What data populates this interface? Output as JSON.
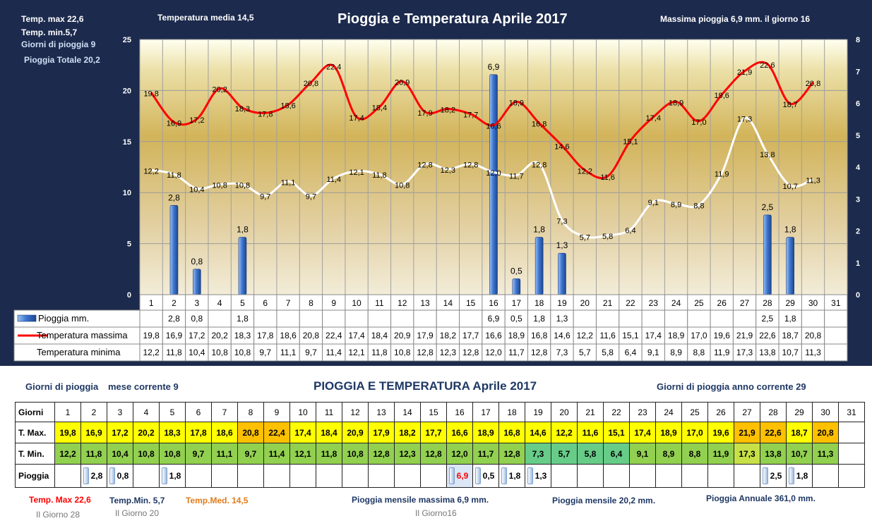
{
  "header": {
    "temp_max": "Temp. max  22,6",
    "temp_min": "Temp.  min.5,7",
    "giorni_pioggia": "Giorni  di pioggia  9",
    "pioggia_totale": "Pioggia Totale  20,2",
    "temperatura_media": "Temperatura media  14,5",
    "title": "Pioggia e Temperatura Aprile 2017",
    "massima_pioggia": "Massima pioggia  6,9   mm.  il giorno 16"
  },
  "chart_data": {
    "type": "bar",
    "title": "Pioggia e Temperatura Aprile 2017",
    "categories": [
      "1",
      "2",
      "3",
      "4",
      "5",
      "6",
      "7",
      "8",
      "9",
      "10",
      "11",
      "12",
      "13",
      "14",
      "15",
      "16",
      "17",
      "18",
      "19",
      "20",
      "21",
      "22",
      "23",
      "24",
      "25",
      "26",
      "27",
      "28",
      "29",
      "30",
      "31"
    ],
    "left_axis": {
      "min": 0,
      "max": 25,
      "ticks": [
        "0",
        "5",
        "10",
        "15",
        "20",
        "25"
      ]
    },
    "right_axis": {
      "min": 0,
      "max": 8,
      "ticks": [
        "0",
        "1",
        "2",
        "3",
        "4",
        "5",
        "6",
        "7",
        "8"
      ]
    },
    "series": [
      {
        "name": "Pioggia mm.",
        "type": "bar",
        "axis": "right",
        "color": "#3a6fc4",
        "values": [
          null,
          2.8,
          0.8,
          null,
          1.8,
          null,
          null,
          null,
          null,
          null,
          null,
          null,
          null,
          null,
          null,
          6.9,
          0.5,
          1.8,
          1.3,
          null,
          null,
          null,
          null,
          null,
          null,
          null,
          null,
          2.5,
          1.8,
          null,
          null
        ],
        "labels": [
          "",
          "2,8",
          "0,8",
          "",
          "1,8",
          "",
          "",
          "",
          "",
          "",
          "",
          "",
          "",
          "",
          "",
          "6,9",
          "0,5",
          "1,8",
          "1,3",
          "",
          "",
          "",
          "",
          "",
          "",
          "",
          "",
          "2,5",
          "1,8",
          "",
          ""
        ]
      },
      {
        "name": "Temperatura massima",
        "type": "line",
        "axis": "left",
        "color": "#ff0000",
        "values": [
          19.8,
          16.9,
          17.2,
          20.2,
          18.3,
          17.8,
          18.6,
          20.8,
          22.4,
          17.4,
          18.4,
          20.9,
          17.9,
          18.2,
          17.7,
          16.6,
          18.9,
          16.8,
          14.6,
          12.2,
          11.6,
          15.1,
          17.4,
          18.9,
          17.0,
          19.6,
          21.9,
          22.6,
          18.7,
          20.8,
          null
        ],
        "labels": [
          "19,8",
          "16,9",
          "17,2",
          "20,2",
          "18,3",
          "17,8",
          "18,6",
          "20,8",
          "22,4",
          "17,4",
          "18,4",
          "20,9",
          "17,9",
          "18,2",
          "17,7",
          "16,6",
          "18,9",
          "16,8",
          "14,6",
          "12,2",
          "11,6",
          "15,1",
          "17,4",
          "18,9",
          "17,0",
          "19,6",
          "21,9",
          "22,6",
          "18,7",
          "20,8",
          ""
        ]
      },
      {
        "name": "Temperatura minima",
        "type": "line",
        "axis": "left",
        "color": "#ffffff",
        "values": [
          12.2,
          11.8,
          10.4,
          10.8,
          10.8,
          9.7,
          11.1,
          9.7,
          11.4,
          12.1,
          11.8,
          10.8,
          12.8,
          12.3,
          12.8,
          12.0,
          11.7,
          12.8,
          7.3,
          5.7,
          5.8,
          6.4,
          9.1,
          8.9,
          8.8,
          11.9,
          17.3,
          13.8,
          10.7,
          11.3,
          null
        ],
        "labels": [
          "12,2",
          "11,8",
          "10,4",
          "10,8",
          "10,8",
          "9,7",
          "11,1",
          "9,7",
          "11,4",
          "12,1",
          "11,8",
          "10,8",
          "12,8",
          "12,3",
          "12,8",
          "12,0",
          "11,7",
          "12,8",
          "7,3",
          "5,7",
          "5,8",
          "6,4",
          "9,1",
          "8,9",
          "8,8",
          "11,9",
          "17,3",
          "13,8",
          "10,7",
          "11,3",
          ""
        ]
      }
    ],
    "grid": true,
    "legend_placement": "bottom-table"
  },
  "bottom": {
    "giorni_mese_label": "Giorni di pioggia",
    "giorni_mese_suffix": "mese corrente   9",
    "title": "PIOGGIA E TEMPERATURA Aprile 2017",
    "giorni_anno": "Giorni di pioggia anno corrente  29",
    "row_labels": [
      "Giorni",
      "T. Max.",
      "T. Min.",
      "Pioggia"
    ],
    "tmax_colors": [
      "#ffff00",
      "#ffff00",
      "#ffff00",
      "#ffff00",
      "#ffff00",
      "#ffff00",
      "#ffff00",
      "#ffc000",
      "#ffc000",
      "#ffff00",
      "#ffff00",
      "#ffff00",
      "#ffff00",
      "#ffff00",
      "#ffff00",
      "#ffff00",
      "#ffff00",
      "#ffff00",
      "#ffff00",
      "#ffff00",
      "#ffff00",
      "#ffff00",
      "#ffff00",
      "#ffff00",
      "#ffff00",
      "#ffff00",
      "#ffc000",
      "#ffc000",
      "#ffff00",
      "#ffc000",
      ""
    ],
    "tmin_colors": [
      "#92d050",
      "#92d050",
      "#92d050",
      "#92d050",
      "#92d050",
      "#92d050",
      "#92d050",
      "#92d050",
      "#92d050",
      "#92d050",
      "#92d050",
      "#92d050",
      "#92d050",
      "#92d050",
      "#92d050",
      "#92d050",
      "#92d050",
      "#92d050",
      "#66cc88",
      "#66cc88",
      "#66cc88",
      "#66cc88",
      "#92d050",
      "#92d050",
      "#92d050",
      "#92d050",
      "#c8e048",
      "#92d050",
      "#92d050",
      "#92d050",
      ""
    ],
    "footer": {
      "temp_max": "Temp. Max 22,6",
      "temp_max_day": "Il Giorno 28",
      "temp_min": "Temp.Min. 5,7",
      "temp_min_day": "Il Giorno 20",
      "temp_med": "Temp.Med. 14,5",
      "pioggia_max": "Pioggia mensile massima 6,9 mm.",
      "pioggia_max_day": "Il Giorno16",
      "pioggia_mensile": "Pioggia mensile 20,2 mm.",
      "pioggia_annuale": "Pioggia Annuale 361,0 mm."
    }
  }
}
